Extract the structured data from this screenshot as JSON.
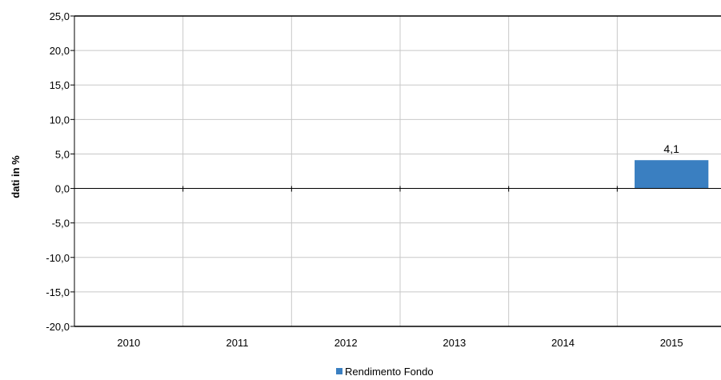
{
  "chart_data": {
    "type": "bar",
    "categories": [
      "2010",
      "2011",
      "2012",
      "2013",
      "2014",
      "2015"
    ],
    "series": [
      {
        "name": "Rendimento Fondo",
        "values": [
          null,
          null,
          null,
          null,
          null,
          4.1
        ],
        "data_labels": [
          "",
          "",
          "",
          "",
          "",
          "4,1"
        ],
        "color": "#3a7fc1"
      }
    ],
    "ylabel": "dati in %",
    "xlabel": "",
    "ylim": [
      -20,
      25
    ],
    "yticks": [
      25,
      20,
      15,
      10,
      5,
      0,
      -5,
      -10,
      -15,
      -20
    ],
    "ytick_labels": [
      "25,0",
      "20,0",
      "15,0",
      "10,0",
      "5,0",
      "0,0",
      "-5,0",
      "-10,0",
      "-15,0",
      "-20,0"
    ],
    "grid": true,
    "legend": "bottom-center",
    "grid_color": "#c8c8c8",
    "axis_color": "#000000"
  }
}
